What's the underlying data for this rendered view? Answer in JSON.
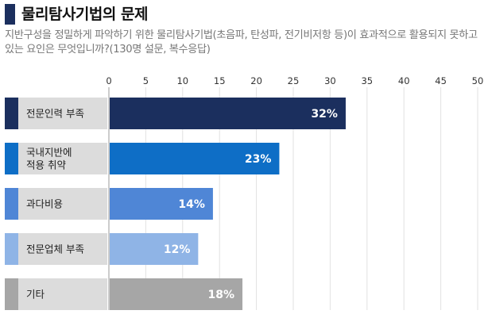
{
  "header": {
    "title": "물리탐사기법의 문제",
    "subtitle": "지반구성을 정밀하게 파악하기 위한 물리탐사기법(초음파, 탄성파, 전기비저항 등)이 효과적으로 활용되지 못하고 있는 요인은 무엇입니까?(130명 설문, 복수응답)"
  },
  "chart_data": {
    "type": "bar",
    "orientation": "horizontal",
    "categories": [
      "전문인력 부족",
      [
        "국내지반에",
        "적용 취약"
      ],
      "과다비용",
      "전문업체 부족",
      "기타"
    ],
    "values": [
      32,
      23,
      14,
      12,
      18
    ],
    "value_labels": [
      "32%",
      "23%",
      "14%",
      "12%",
      "18%"
    ],
    "xlim": [
      0,
      50
    ],
    "ticks": [
      0,
      5,
      10,
      15,
      20,
      25,
      30,
      35,
      40,
      45,
      50
    ],
    "colors": [
      "#1b2f5e",
      "#0e6ec6",
      "#4f86d6",
      "#8fb4e6",
      "#a6a6a6"
    ],
    "title": "",
    "xlabel": "",
    "ylabel": ""
  }
}
